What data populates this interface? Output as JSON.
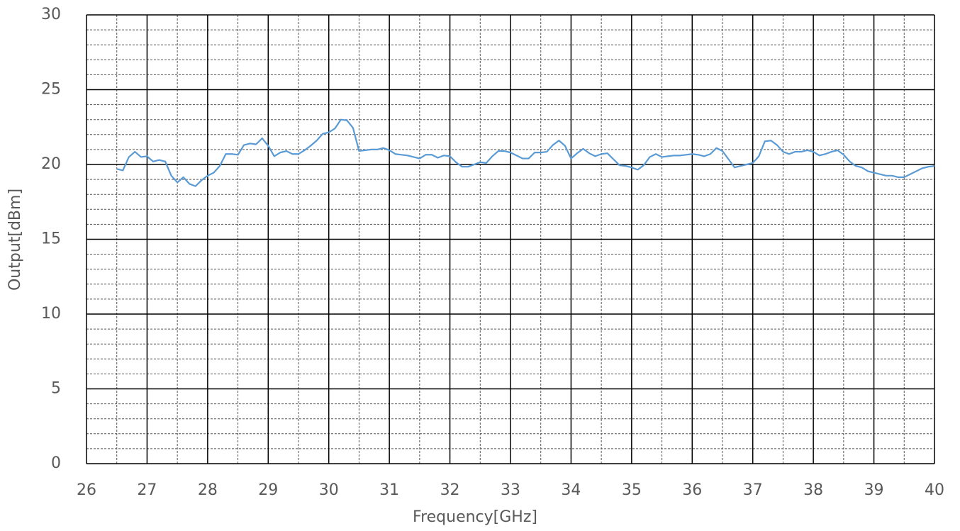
{
  "chart_data": {
    "type": "line",
    "x_label": "Frequency[GHz]",
    "y_label": "Output[dBm]",
    "x": [
      26.5,
      26.6,
      26.7,
      26.8,
      26.9,
      27,
      27.1,
      27.2,
      27.3,
      27.4,
      27.5,
      27.6,
      27.7,
      27.8,
      27.9,
      28,
      28.1,
      28.2,
      28.3,
      28.4,
      28.5,
      28.6,
      28.7,
      28.8,
      28.9,
      29,
      29.1,
      29.2,
      29.3,
      29.4,
      29.5,
      29.6,
      29.7,
      29.8,
      29.9,
      30,
      30.1,
      30.2,
      30.3,
      30.4,
      30.5,
      30.6,
      30.7,
      30.8,
      30.9,
      31,
      31.1,
      31.2,
      31.3,
      31.4,
      31.5,
      31.6,
      31.7,
      31.8,
      31.9,
      32,
      32.1,
      32.2,
      32.3,
      32.4,
      32.5,
      32.6,
      32.7,
      32.8,
      32.9,
      33,
      33.1,
      33.2,
      33.3,
      33.4,
      33.5,
      33.6,
      33.7,
      33.8,
      33.9,
      34,
      34.1,
      34.2,
      34.3,
      34.4,
      34.5,
      34.6,
      34.7,
      34.8,
      34.9,
      35,
      35.1,
      35.2,
      35.3,
      35.4,
      35.5,
      35.6,
      35.7,
      35.8,
      35.9,
      36,
      36.1,
      36.2,
      36.3,
      36.4,
      36.5,
      36.6,
      36.7,
      36.8,
      36.9,
      37,
      37.1,
      37.2,
      37.3,
      37.4,
      37.5,
      37.6,
      37.7,
      37.8,
      37.9,
      38,
      38.1,
      38.2,
      38.3,
      38.4,
      38.5,
      38.6,
      38.7,
      38.8,
      38.9,
      39,
      39.1,
      39.2,
      39.3,
      39.4,
      39.5,
      39.6,
      39.7,
      39.8,
      39.9,
      40
    ],
    "series": [
      {
        "color": "#5b9bd5",
        "values": [
          19.7,
          19.6,
          20.5,
          20.85,
          20.5,
          20.55,
          20.2,
          20.3,
          20.2,
          19.25,
          18.8,
          19.15,
          18.7,
          18.55,
          18.95,
          19.25,
          19.45,
          19.9,
          20.7,
          20.7,
          20.65,
          21.3,
          21.4,
          21.35,
          21.75,
          21.25,
          20.55,
          20.8,
          20.9,
          20.7,
          20.7,
          20.95,
          21.25,
          21.6,
          22.05,
          22.15,
          22.4,
          23.0,
          22.95,
          22.45,
          20.9,
          20.95,
          21.0,
          21.0,
          21.1,
          20.95,
          20.7,
          20.65,
          20.6,
          20.5,
          20.4,
          20.65,
          20.65,
          20.45,
          20.6,
          20.55,
          20.15,
          19.85,
          19.85,
          20.0,
          20.15,
          20.1,
          20.55,
          20.9,
          20.9,
          20.8,
          20.6,
          20.4,
          20.4,
          20.8,
          20.8,
          20.85,
          21.3,
          21.6,
          21.25,
          20.4,
          20.75,
          21.05,
          20.75,
          20.55,
          20.7,
          20.75,
          20.35,
          19.95,
          19.9,
          19.8,
          19.65,
          19.95,
          20.5,
          20.7,
          20.5,
          20.55,
          20.6,
          20.6,
          20.65,
          20.7,
          20.65,
          20.55,
          20.7,
          21.1,
          20.9,
          20.35,
          19.8,
          19.9,
          20.0,
          20.1,
          20.55,
          21.55,
          21.6,
          21.3,
          20.85,
          20.7,
          20.85,
          20.85,
          20.95,
          20.85,
          20.6,
          20.7,
          20.85,
          20.95,
          20.65,
          20.2,
          19.9,
          19.8,
          19.55,
          19.45,
          19.35,
          19.25,
          19.25,
          19.15,
          19.15,
          19.35,
          19.55,
          19.75,
          19.85,
          19.9
        ]
      }
    ],
    "xlim": [
      26,
      40
    ],
    "ylim": [
      0,
      30
    ],
    "xticks": [
      26,
      27,
      28,
      29,
      30,
      31,
      32,
      33,
      34,
      35,
      36,
      37,
      38,
      39,
      40
    ],
    "yticks": [
      0,
      5,
      10,
      15,
      20,
      25,
      30
    ],
    "xminor": [
      26.5,
      27.5,
      28.5,
      29.5,
      30.5,
      31.5,
      32.5,
      33.5,
      34.5,
      35.5,
      36.5,
      37.5,
      38.5,
      39.5
    ],
    "yminor": [
      1,
      2,
      3,
      4,
      6,
      7,
      8,
      9,
      11,
      12,
      13,
      14,
      16,
      17,
      18,
      19,
      21,
      22,
      23,
      24,
      26,
      27,
      28,
      29
    ],
    "grid": true
  }
}
